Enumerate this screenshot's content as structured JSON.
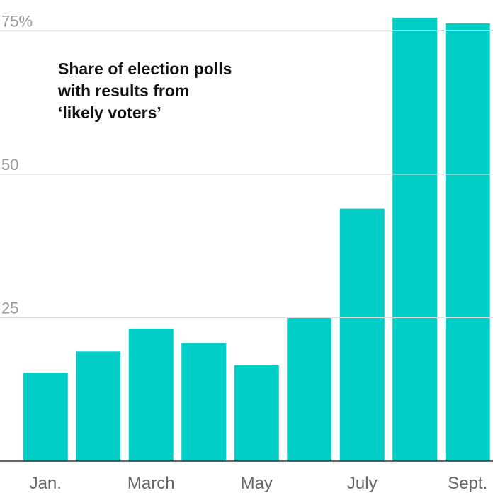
{
  "chart_data": {
    "type": "bar",
    "title": "Share of election polls with results from ‘likely voters’",
    "categories": [
      "Jan.",
      null,
      "March",
      null,
      "May",
      null,
      "July",
      null,
      "Sept."
    ],
    "values": [
      15.4,
      19.1,
      23.1,
      20.6,
      16.7,
      25,
      44,
      77.3,
      76.3
    ],
    "color": "#00cdc6",
    "ylim": [
      0,
      80
    ],
    "yticks": [
      0,
      25,
      50,
      {
        "value": 75,
        "label": "75%"
      }
    ],
    "grid": true
  }
}
